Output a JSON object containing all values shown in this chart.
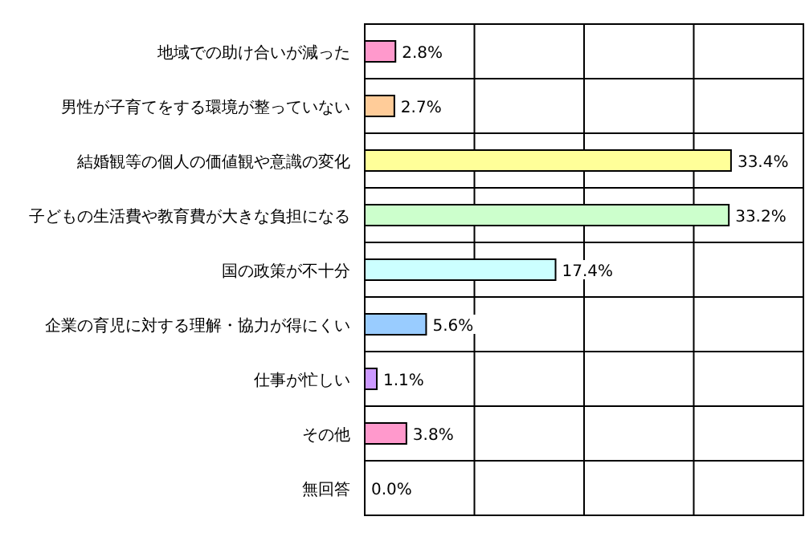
{
  "chart_data": {
    "type": "bar",
    "orientation": "horizontal",
    "categories": [
      "地域での助け合いが減った",
      "男性が子育てをする環境が整っていない",
      "結婚観等の個人の価値観や意識の変化",
      "子どもの生活費や教育費が大きな負担になる",
      "国の政策が不十分",
      "企業の育児に対する理解・協力が得にくい",
      "仕事が忙しい",
      "その他",
      "無回答"
    ],
    "values": [
      2.8,
      2.7,
      33.4,
      33.2,
      17.4,
      5.6,
      1.1,
      3.8,
      0.0
    ],
    "value_labels": [
      "2.8%",
      "2.7%",
      "33.4%",
      "33.2%",
      "17.4%",
      "5.6%",
      "1.1%",
      "3.8%",
      "0.0%"
    ],
    "colors": [
      "#ff99cc",
      "#ffcc99",
      "#ffff99",
      "#ccffcc",
      "#ccffff",
      "#99ccff",
      "#cc99ff",
      "#ff99cc",
      "#ff99cc"
    ],
    "xlim": [
      0,
      40
    ],
    "xticks": [
      {
        "value": 0,
        "label": null
      },
      {
        "value": 10,
        "label": null
      },
      {
        "value": 20,
        "label": null
      },
      {
        "value": 30,
        "label": null
      },
      {
        "value": 40,
        "label": null
      }
    ],
    "tick_labels": "y",
    "grid": true
  }
}
